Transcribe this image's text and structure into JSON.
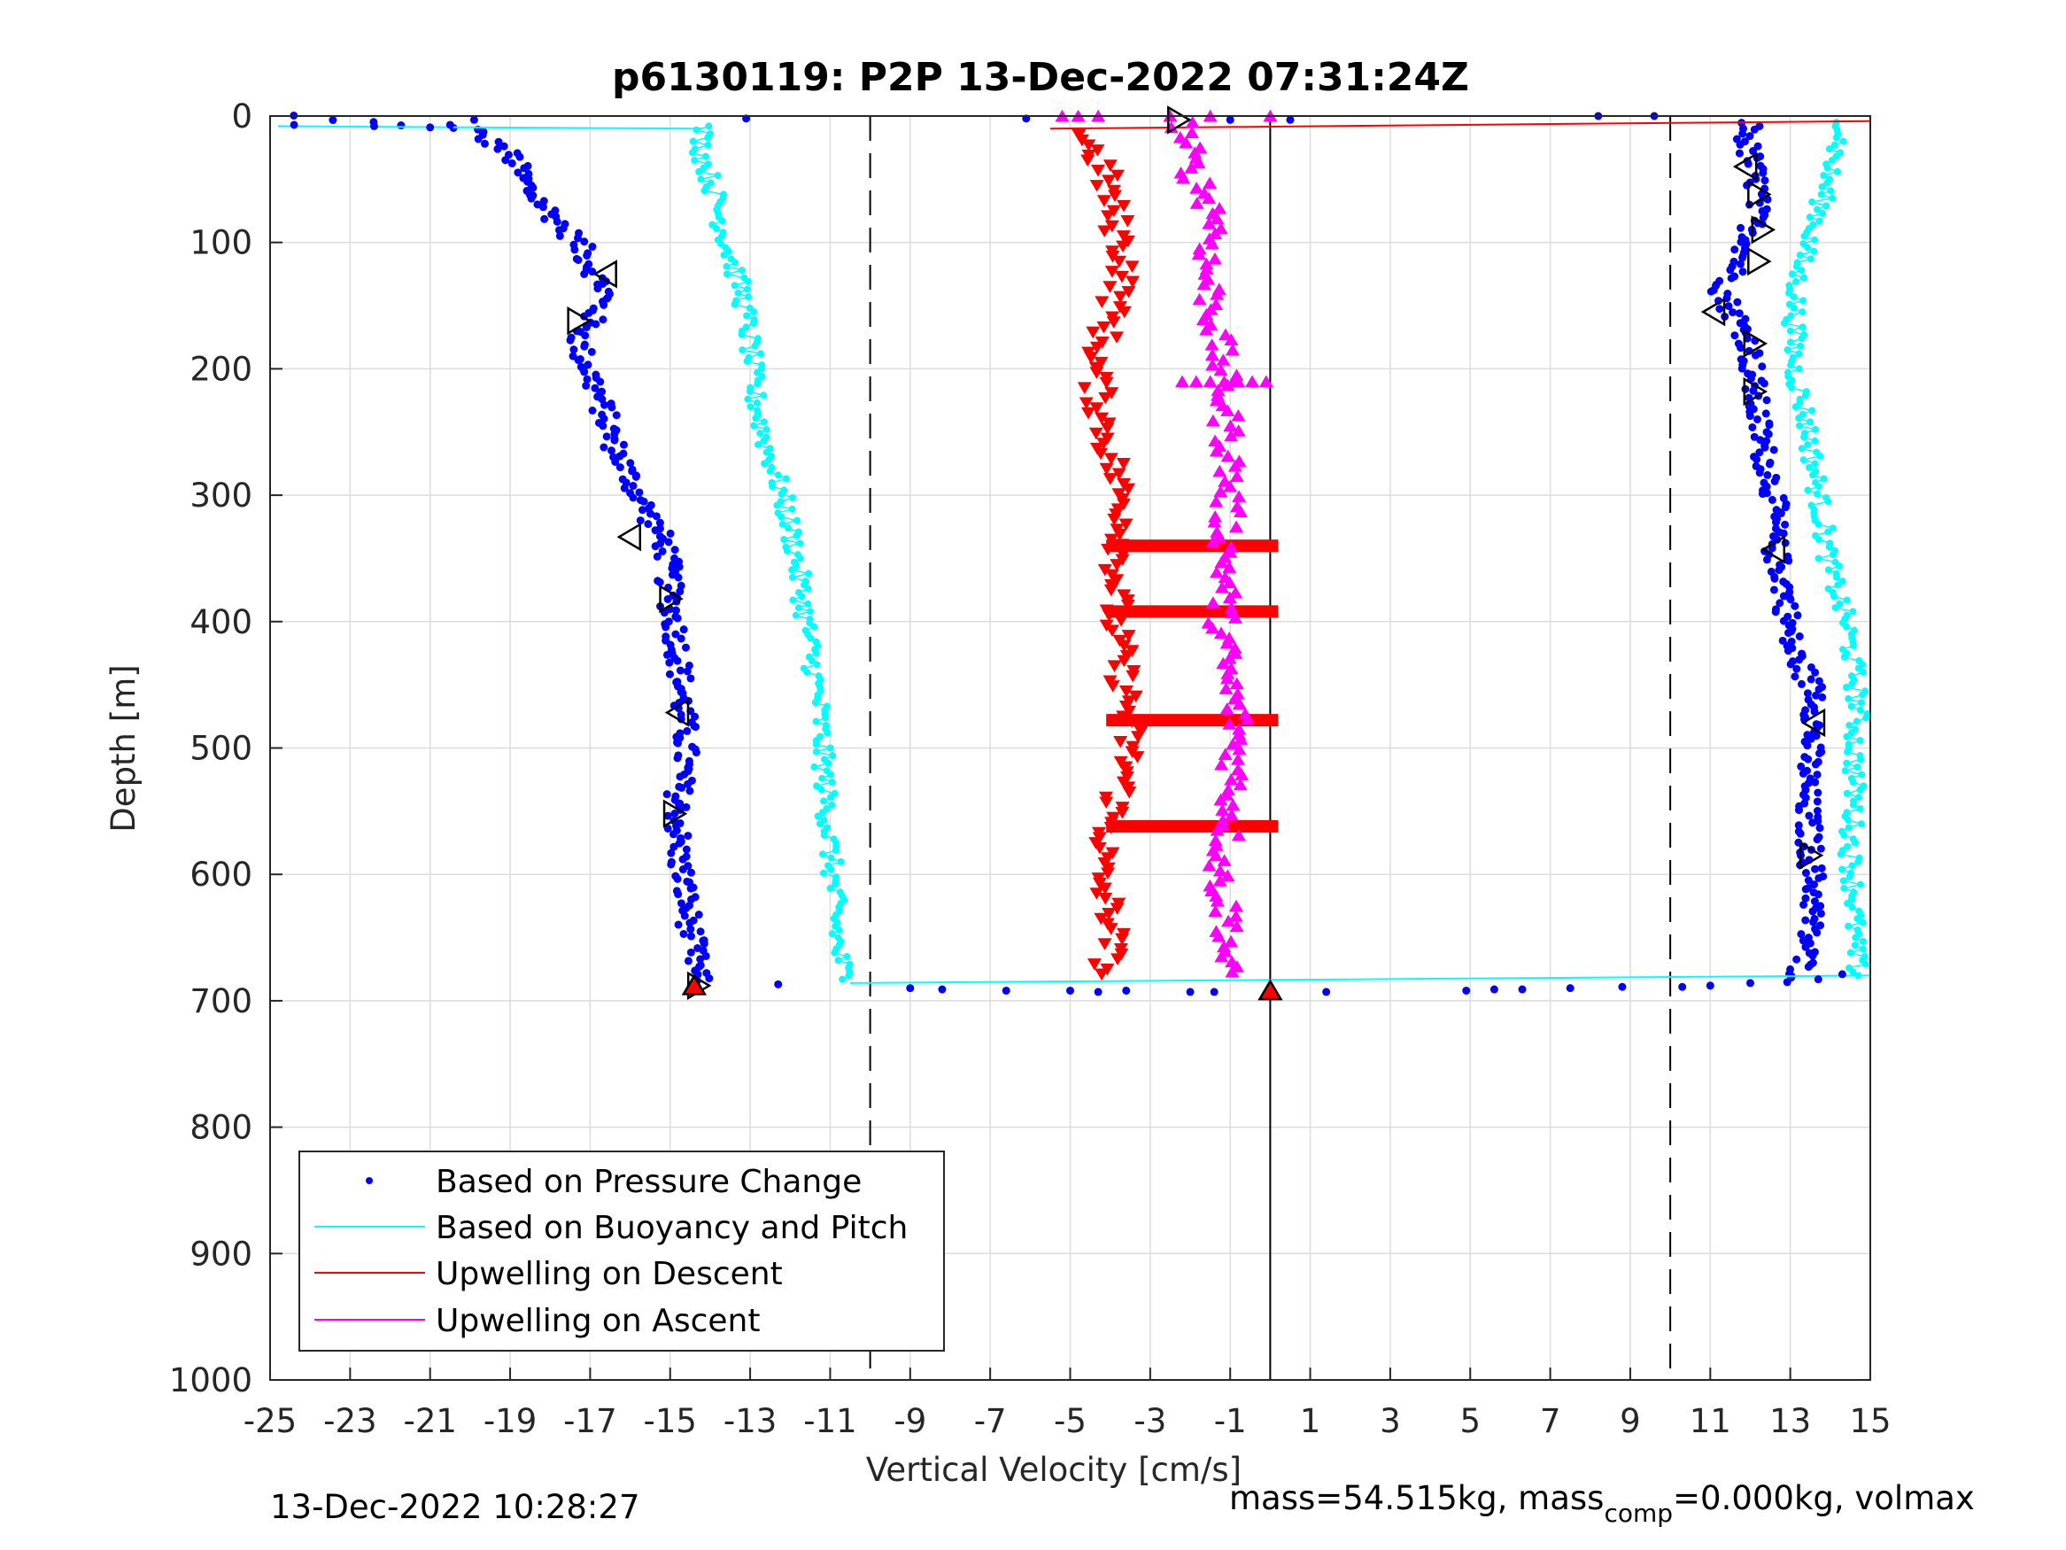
{
  "chart_data": {
    "type": "scatter",
    "title": "p6130119: P2P 13-Dec-2022 07:31:24Z",
    "xlabel": "Vertical Velocity [cm/s]",
    "ylabel": "Depth [m]",
    "xlim": [
      -25,
      15
    ],
    "ylim": [
      0,
      1000
    ],
    "y_reversed": true,
    "xticks": [
      -25,
      -23,
      -21,
      -19,
      -17,
      -15,
      -13,
      -11,
      -9,
      -7,
      -5,
      -3,
      -1,
      1,
      3,
      5,
      7,
      9,
      11,
      13,
      15
    ],
    "xtick_labels": [
      "-25",
      "-23",
      "-21",
      "-19",
      "-17",
      "-15",
      "-13",
      "-11",
      "-9",
      "-7",
      "-5",
      "-3",
      "-1",
      "1",
      "3",
      "5",
      "7",
      "9",
      "11",
      "13",
      "15"
    ],
    "yticks": [
      0,
      100,
      200,
      300,
      400,
      500,
      600,
      700,
      800,
      900,
      1000
    ],
    "ytick_labels": [
      "0",
      "100",
      "200",
      "300",
      "400",
      "500",
      "600",
      "700",
      "800",
      "900",
      "1000"
    ],
    "grid": true,
    "legend_position": "bottom-left",
    "reference_lines": {
      "dashed_x": [
        -10,
        10
      ],
      "solid_x": [
        0
      ]
    },
    "series": [
      {
        "name": "Based on Pressure Change",
        "color": "#0000ff",
        "marker": "dot",
        "descent": {
          "depth": [
            0,
            10,
            30,
            60,
            100,
            140,
            180,
            220,
            260,
            300,
            340,
            380,
            420,
            460,
            500,
            540,
            580,
            620,
            660,
            685
          ],
          "velocity": [
            -24.5,
            -20,
            -19,
            -18.5,
            -17.3,
            -16.6,
            -17.3,
            -16.8,
            -16.4,
            -15.8,
            -15.1,
            -15.0,
            -14.8,
            -14.7,
            -14.6,
            -14.8,
            -14.8,
            -14.6,
            -14.4,
            -14.3
          ]
        },
        "ascent": {
          "depth": [
            685,
            660,
            620,
            580,
            540,
            500,
            460,
            420,
            380,
            340,
            300,
            260,
            220,
            180,
            140,
            100,
            60,
            20,
            5
          ],
          "velocity": [
            13.2,
            13.4,
            13.6,
            13.5,
            13.4,
            13.5,
            13.7,
            13.0,
            12.9,
            12.6,
            12.6,
            12.3,
            12.1,
            12.0,
            11.3,
            12.0,
            12.2,
            11.9,
            12.0
          ]
        }
      },
      {
        "name": "Based on Buoyancy and Pitch",
        "color": "#00ffff",
        "marker": "circle-line",
        "descent": {
          "depth": [
            8,
            30,
            60,
            100,
            140,
            180,
            220,
            260,
            300,
            340,
            380,
            420,
            460,
            500,
            540,
            580,
            620,
            660,
            685
          ],
          "velocity": [
            -14.2,
            -14.2,
            -13.9,
            -13.6,
            -13.2,
            -13.0,
            -12.9,
            -12.6,
            -12.2,
            -11.9,
            -11.7,
            -11.5,
            -11.3,
            -11.2,
            -11.1,
            -11.0,
            -10.9,
            -10.8,
            -10.6
          ]
        },
        "ascent": {
          "depth": [
            680,
            660,
            620,
            580,
            540,
            500,
            470,
            440,
            400,
            360,
            320,
            280,
            240,
            200,
            160,
            120,
            80,
            40,
            5
          ],
          "velocity": [
            14.7,
            14.6,
            14.6,
            14.5,
            14.6,
            14.6,
            14.7,
            14.6,
            14.4,
            14.0,
            13.8,
            13.6,
            13.4,
            13.1,
            13.1,
            13.2,
            13.7,
            14.0,
            14.4
          ]
        }
      },
      {
        "name": "Upwelling on Descent",
        "color": "#ff0000",
        "marker": "triangle-down",
        "depth": [
          15,
          40,
          80,
          120,
          160,
          200,
          240,
          280,
          320,
          360,
          400,
          440,
          480,
          520,
          560,
          600,
          640,
          680
        ],
        "velocity": [
          -4.7,
          -4.2,
          -3.9,
          -3.6,
          -4.0,
          -4.4,
          -4.2,
          -3.9,
          -3.6,
          -3.8,
          -3.9,
          -3.7,
          -3.5,
          -3.6,
          -4.0,
          -4.3,
          -3.9,
          -4.1
        ]
      },
      {
        "name": "Upwelling on Ascent",
        "color": "#ff00ff",
        "marker": "triangle-up",
        "depth": [
          680,
          640,
          600,
          560,
          520,
          480,
          440,
          400,
          360,
          320,
          280,
          240,
          200,
          160,
          120,
          80,
          40,
          5
        ],
        "velocity": [
          -1.2,
          -1.0,
          -1.3,
          -1.0,
          -0.9,
          -0.8,
          -1.1,
          -1.2,
          -1.1,
          -1.1,
          -1.0,
          -1.1,
          -1.2,
          -1.4,
          -1.6,
          -1.3,
          -2.0,
          -2.2
        ]
      }
    ],
    "markers": {
      "open_triangles": [
        {
          "x": -2.3,
          "y": 3,
          "dir": "right"
        },
        {
          "x": -16.6,
          "y": 125,
          "dir": "left"
        },
        {
          "x": -17.3,
          "y": 162,
          "dir": "right"
        },
        {
          "x": -16.0,
          "y": 333,
          "dir": "left"
        },
        {
          "x": -15.0,
          "y": 382,
          "dir": "right"
        },
        {
          "x": -14.8,
          "y": 472,
          "dir": "left"
        },
        {
          "x": -14.9,
          "y": 552,
          "dir": "right"
        },
        {
          "x": -14.3,
          "y": 688,
          "dir": "right"
        },
        {
          "x": 11.9,
          "y": 40,
          "dir": "left"
        },
        {
          "x": 12.2,
          "y": 62,
          "dir": "right"
        },
        {
          "x": 12.3,
          "y": 90,
          "dir": "right"
        },
        {
          "x": 12.2,
          "y": 115,
          "dir": "right"
        },
        {
          "x": 11.1,
          "y": 155,
          "dir": "left"
        },
        {
          "x": 12.1,
          "y": 180,
          "dir": "right"
        },
        {
          "x": 12.1,
          "y": 218,
          "dir": "right"
        },
        {
          "x": 12.6,
          "y": 343,
          "dir": "left"
        },
        {
          "x": 13.6,
          "y": 480,
          "dir": "left"
        },
        {
          "x": 13.5,
          "y": 585,
          "dir": "right"
        }
      ],
      "filled_triangles": [
        {
          "x": 0,
          "y": 692,
          "dir": "up"
        },
        {
          "x": -14.4,
          "y": 688,
          "dir": "up"
        }
      ]
    }
  },
  "legend": {
    "items": [
      "Based on Pressure Change",
      "Based on Buoyancy and Pitch",
      "Upwelling on Descent",
      "Upwelling on Ascent"
    ]
  },
  "footer": {
    "timestamp": "13-Dec-2022 10:28:27",
    "mass_text": "mass=54.515kg, mass",
    "mass_sub": "comp",
    "mass_rest": "=0.000kg, volmax"
  }
}
